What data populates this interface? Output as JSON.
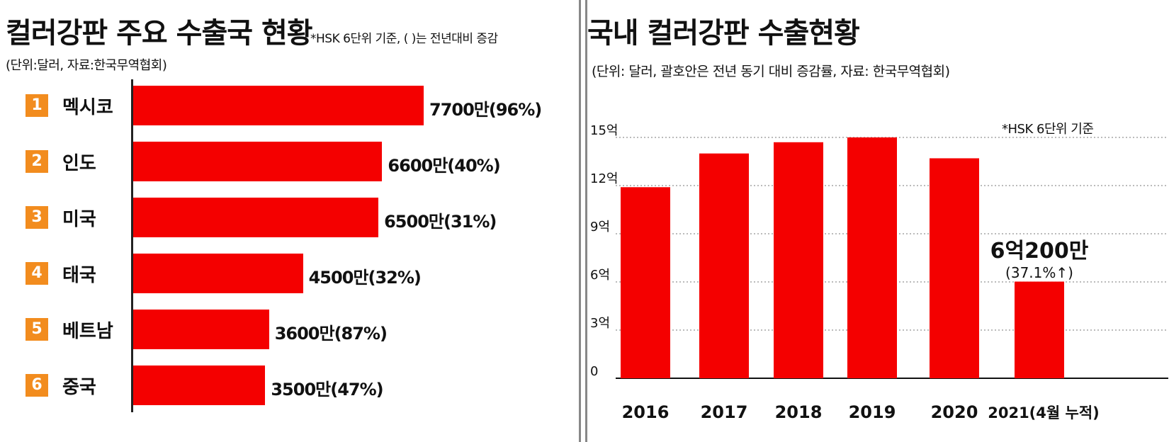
{
  "left_chart": {
    "title": "컬러강판 주요 수출국 현황",
    "note": "*HSK 6단위 기준, (   )는 전년대비 증감",
    "unit": "(단위:달러, 자료:한국무역협회)",
    "rank_color": "#f28c1e",
    "bar_color": "#f40000"
  },
  "right_chart": {
    "title": "국내 컬러강판 수출현황",
    "unit": "(단위: 달러, 괄호안은 전년 동기 대비 증감률, 자료: 한국무역협회)",
    "note": "*HSK 6단위 기준",
    "highlight_value": "6억200만",
    "highlight_change": "(37.1%↑)",
    "bar_color": "#f40000"
  },
  "chart_data": [
    {
      "type": "bar",
      "orientation": "horizontal",
      "title": "컬러강판 주요 수출국 현황",
      "categories": [
        "멕시코",
        "인도",
        "미국",
        "태국",
        "베트남",
        "중국"
      ],
      "ranks": [
        "1",
        "2",
        "3",
        "4",
        "5",
        "6"
      ],
      "values": [
        77000000,
        66000000,
        65000000,
        45000000,
        36000000,
        35000000
      ],
      "labels": [
        "7700만(96%)",
        "6600만(40%)",
        "6500만(31%)",
        "4500만(32%)",
        "3600만(87%)",
        "3500만(47%)"
      ],
      "changes_pct": [
        96,
        40,
        31,
        32,
        87,
        47
      ],
      "grid": false
    },
    {
      "type": "bar",
      "title": "국내 컬러강판 수출현황",
      "categories": [
        "2016",
        "2017",
        "2018",
        "2019",
        "2020",
        "2021(4월 누적)"
      ],
      "values": [
        1190000000,
        1400000000,
        1470000000,
        1500000000,
        1370000000,
        602000000
      ],
      "ylim": [
        0,
        1500000000
      ],
      "yticks": [
        "0",
        "3억",
        "6억",
        "9억",
        "12억",
        "15억"
      ],
      "ytick_values": [
        0,
        300000000,
        600000000,
        900000000,
        1200000000,
        1500000000
      ],
      "grid": true
    }
  ]
}
